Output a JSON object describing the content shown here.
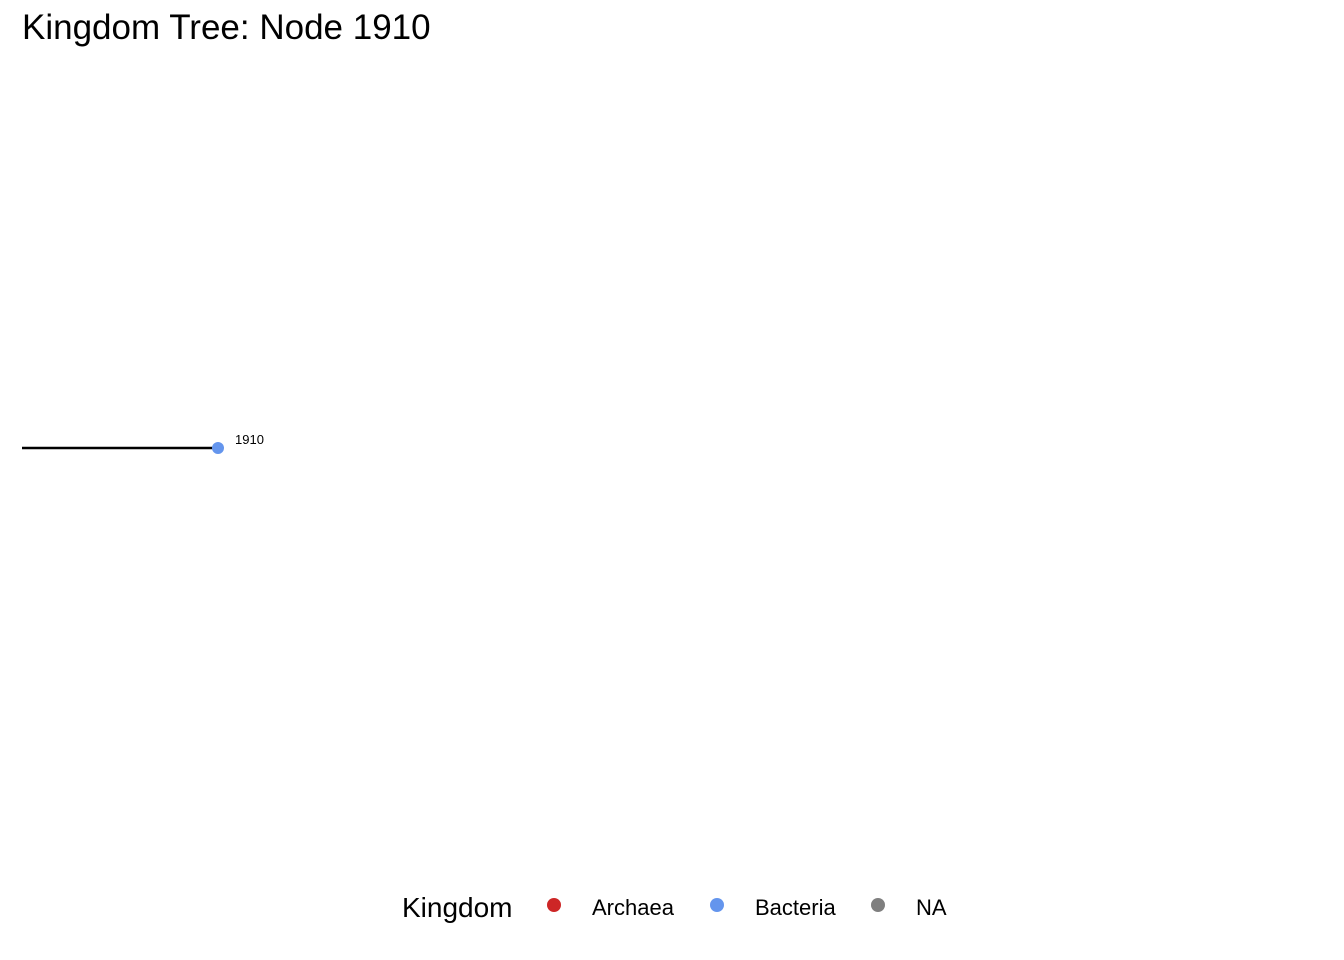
{
  "title": "Kingdom Tree: Node 1910",
  "tree": {
    "edges": [
      {
        "from": "root",
        "to": "1910"
      }
    ],
    "nodes": [
      {
        "id": "1910",
        "label": "1910",
        "kingdom": "Bacteria"
      }
    ]
  },
  "legend": {
    "title": "Kingdom",
    "items": [
      {
        "label": "Archaea",
        "color": "#CD2626"
      },
      {
        "label": "Bacteria",
        "color": "#6495ED"
      },
      {
        "label": "NA",
        "color": "#7F7F7F"
      }
    ]
  },
  "colors": {
    "edge": "#000000",
    "text": "#000000",
    "background": "#FFFFFF"
  }
}
